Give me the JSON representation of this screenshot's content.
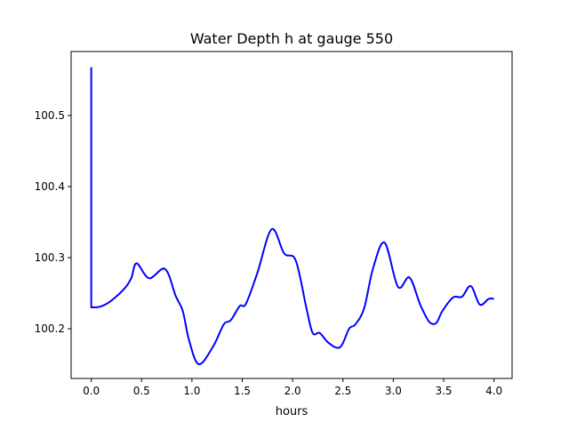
{
  "chart_data": {
    "type": "line",
    "title": "Water Depth h at gauge 550",
    "xlabel": "hours",
    "ylabel": "",
    "xlim": [
      -0.2,
      4.18
    ],
    "ylim": [
      100.13,
      100.59
    ],
    "grid": false,
    "xticks": [
      0.0,
      0.5,
      1.0,
      1.5,
      2.0,
      2.5,
      3.0,
      3.5,
      4.0
    ],
    "xtick_labels": [
      "0.0",
      "0.5",
      "1.0",
      "1.5",
      "2.0",
      "2.5",
      "3.0",
      "3.5",
      "4.0"
    ],
    "yticks": [
      100.2,
      100.3,
      100.4,
      100.5
    ],
    "ytick_labels": [
      "100.2",
      "100.3",
      "100.4",
      "100.5"
    ],
    "series": [
      {
        "name": "h",
        "color": "#0000ff",
        "x": [
          0,
          0,
          0.088,
          0.185,
          0.327,
          0.397,
          0.45,
          0.574,
          0.733,
          0.839,
          0.909,
          0.971,
          1.068,
          1.21,
          1.316,
          1.386,
          1.475,
          1.536,
          1.651,
          1.792,
          1.916,
          2.031,
          2.137,
          2.199,
          2.269,
          2.358,
          2.472,
          2.561,
          2.623,
          2.711,
          2.799,
          2.914,
          3.046,
          3.161,
          3.267,
          3.355,
          3.426,
          3.488,
          3.594,
          3.682,
          3.77,
          3.859,
          3.947,
          4.0
        ],
        "y": [
          100.568,
          100.23,
          100.231,
          100.238,
          100.256,
          100.271,
          100.292,
          100.271,
          100.284,
          100.246,
          100.225,
          100.184,
          100.15,
          100.175,
          100.206,
          100.212,
          100.232,
          100.235,
          100.279,
          100.34,
          100.306,
          100.296,
          100.229,
          100.194,
          100.194,
          100.18,
          100.174,
          100.2,
          100.206,
          100.229,
          100.285,
          100.321,
          100.259,
          100.272,
          100.234,
          100.21,
          100.208,
          100.225,
          100.244,
          100.245,
          100.26,
          100.234,
          100.242,
          100.242
        ]
      }
    ]
  }
}
